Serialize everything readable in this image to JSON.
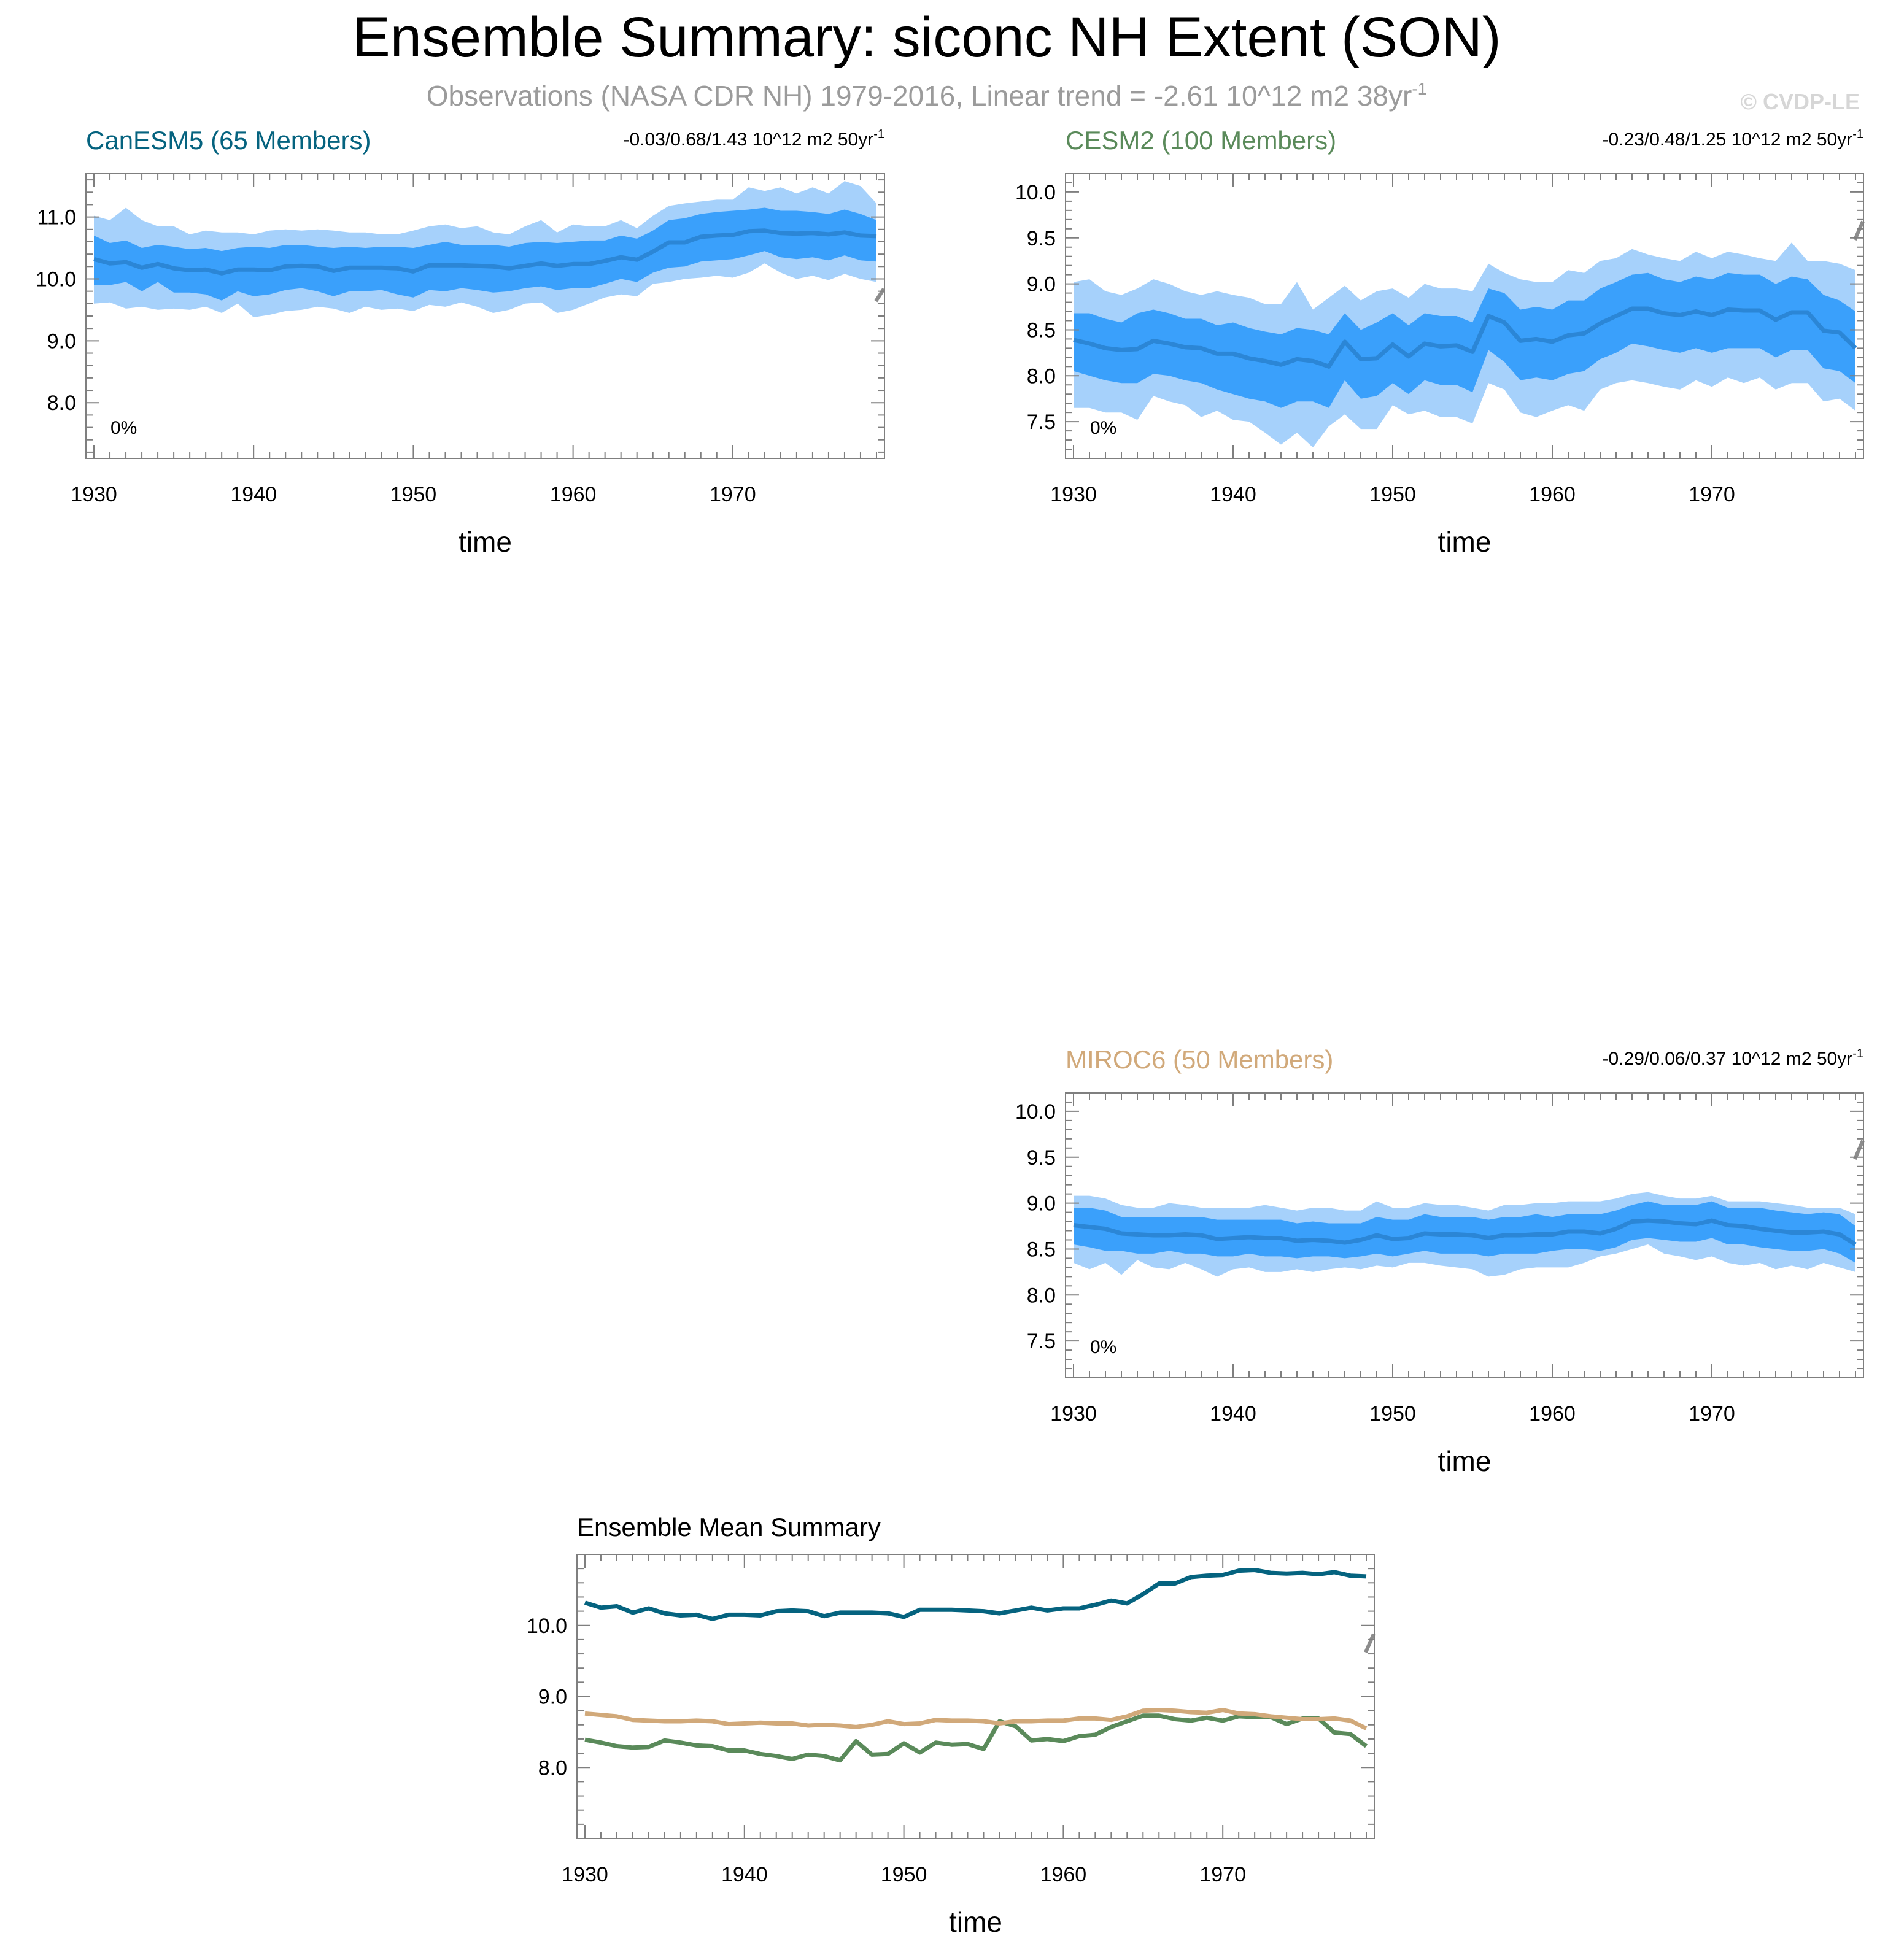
{
  "title": "Ensemble Summary: siconc NH Extent (SON)",
  "subtitle": {
    "main": "Observations (NASA CDR NH) 1979-2016, Linear trend = -2.61 10^12 m2 38yr",
    "sup": "-1"
  },
  "copyright": "© CVDP-LE",
  "colors": {
    "outer_band": "#a6d1fb",
    "inner_band": "#3aa0fb",
    "mean_line": "#2b86d6",
    "axis": "#7f7f7f",
    "obs_mark": "#8c8c8c",
    "canesm5": "#05637f",
    "cesm2": "#5a8a5a",
    "miroc6": "#d1a97a"
  },
  "chart_data": [
    {
      "id": "canesm5",
      "type": "area",
      "title": "CanESM5 (65 Members)",
      "title_color": "#05637f",
      "stats": "-0.03/0.68/1.43 10^12 m2 50yr",
      "stats_sup": "-1",
      "percent_label": "0%",
      "xlabel": "time",
      "xlim": [
        1929.5,
        1979.5
      ],
      "xticks": [
        1930,
        1940,
        1950,
        1960,
        1970
      ],
      "ylim": [
        7.1,
        11.7
      ],
      "yticks": [
        8.0,
        9.0,
        10.0,
        11.0
      ],
      "ytick_labels": [
        "8.0",
        "9.0",
        "10.0",
        "11.0"
      ],
      "obs_mark_y": [
        9.64,
        9.84
      ],
      "x_start": 1930,
      "x_end": 1979,
      "mean": [
        10.32,
        10.25,
        10.27,
        10.18,
        10.24,
        10.17,
        10.14,
        10.15,
        10.09,
        10.15,
        10.15,
        10.14,
        10.2,
        10.21,
        10.2,
        10.13,
        10.18,
        10.18,
        10.18,
        10.17,
        10.12,
        10.22,
        10.22,
        10.22,
        10.21,
        10.2,
        10.17,
        10.21,
        10.25,
        10.21,
        10.24,
        10.24,
        10.29,
        10.35,
        10.31,
        10.44,
        10.59,
        10.59,
        10.68,
        10.7,
        10.71,
        10.77,
        10.78,
        10.74,
        10.73,
        10.74,
        10.72,
        10.75,
        10.7,
        10.69
      ],
      "p10": [
        9.9,
        9.9,
        9.95,
        9.8,
        9.95,
        9.78,
        9.78,
        9.75,
        9.65,
        9.8,
        9.72,
        9.75,
        9.82,
        9.85,
        9.8,
        9.72,
        9.8,
        9.8,
        9.82,
        9.75,
        9.7,
        9.82,
        9.8,
        9.85,
        9.82,
        9.78,
        9.8,
        9.85,
        9.88,
        9.82,
        9.85,
        9.85,
        9.92,
        10.0,
        9.95,
        10.1,
        10.18,
        10.2,
        10.28,
        10.3,
        10.32,
        10.38,
        10.45,
        10.35,
        10.32,
        10.35,
        10.3,
        10.38,
        10.3,
        10.28
      ],
      "p90": [
        10.7,
        10.58,
        10.62,
        10.5,
        10.55,
        10.52,
        10.48,
        10.5,
        10.45,
        10.5,
        10.52,
        10.5,
        10.55,
        10.55,
        10.52,
        10.5,
        10.52,
        10.5,
        10.52,
        10.52,
        10.5,
        10.55,
        10.6,
        10.55,
        10.55,
        10.55,
        10.52,
        10.58,
        10.6,
        10.58,
        10.6,
        10.62,
        10.62,
        10.7,
        10.65,
        10.78,
        10.95,
        10.98,
        11.05,
        11.08,
        11.1,
        11.12,
        11.15,
        11.1,
        11.1,
        11.08,
        11.05,
        11.12,
        11.05,
        10.95
      ],
      "p2": [
        9.6,
        9.62,
        9.52,
        9.55,
        9.5,
        9.52,
        9.5,
        9.55,
        9.45,
        9.6,
        9.38,
        9.42,
        9.48,
        9.5,
        9.55,
        9.52,
        9.45,
        9.55,
        9.5,
        9.52,
        9.48,
        9.58,
        9.55,
        9.62,
        9.55,
        9.45,
        9.5,
        9.6,
        9.62,
        9.45,
        9.5,
        9.6,
        9.7,
        9.75,
        9.72,
        9.92,
        9.95,
        10.0,
        10.02,
        10.05,
        10.02,
        10.1,
        10.25,
        10.1,
        10.0,
        10.05,
        9.98,
        10.08,
        10.0,
        9.95
      ],
      "p98": [
        11.02,
        10.95,
        11.15,
        10.95,
        10.85,
        10.85,
        10.72,
        10.78,
        10.75,
        10.75,
        10.72,
        10.78,
        10.8,
        10.78,
        10.8,
        10.78,
        10.75,
        10.75,
        10.72,
        10.72,
        10.78,
        10.85,
        10.88,
        10.82,
        10.85,
        10.75,
        10.72,
        10.85,
        10.95,
        10.75,
        10.88,
        10.85,
        10.85,
        10.95,
        10.82,
        11.02,
        11.18,
        11.22,
        11.25,
        11.28,
        11.28,
        11.48,
        11.42,
        11.48,
        11.38,
        11.48,
        11.38,
        11.58,
        11.5,
        11.22
      ]
    },
    {
      "id": "cesm2",
      "type": "area",
      "title": "CESM2 (100 Members)",
      "title_color": "#5a8a5a",
      "stats": "-0.23/0.48/1.25 10^12 m2 50yr",
      "stats_sup": "-1",
      "percent_label": "0%",
      "xlabel": "time",
      "xlim": [
        1929.5,
        1979.5
      ],
      "xticks": [
        1930,
        1940,
        1950,
        1960,
        1970
      ],
      "ylim": [
        7.1,
        10.2
      ],
      "yticks": [
        7.5,
        8.0,
        8.5,
        9.0,
        9.5,
        10.0
      ],
      "ytick_labels": [
        "7.5",
        "8.0",
        "8.5",
        "9.0",
        "9.5",
        "10.0"
      ],
      "obs_mark_y": [
        9.48,
        9.68
      ],
      "x_start": 1930,
      "x_end": 1979,
      "mean": [
        8.39,
        8.35,
        8.3,
        8.28,
        8.29,
        8.38,
        8.35,
        8.31,
        8.3,
        8.24,
        8.24,
        8.19,
        8.16,
        8.12,
        8.18,
        8.16,
        8.1,
        8.37,
        8.18,
        8.19,
        8.34,
        8.21,
        8.35,
        8.32,
        8.33,
        8.26,
        8.65,
        8.58,
        8.38,
        8.4,
        8.37,
        8.44,
        8.46,
        8.57,
        8.65,
        8.73,
        8.73,
        8.68,
        8.66,
        8.7,
        8.66,
        8.72,
        8.71,
        8.71,
        8.61,
        8.69,
        8.69,
        8.49,
        8.47,
        8.3
      ],
      "p10": [
        8.05,
        8.0,
        7.95,
        7.92,
        7.92,
        8.02,
        8.0,
        7.95,
        7.92,
        7.85,
        7.8,
        7.75,
        7.72,
        7.65,
        7.72,
        7.72,
        7.65,
        7.95,
        7.75,
        7.78,
        7.92,
        7.8,
        7.95,
        7.9,
        7.9,
        7.82,
        8.28,
        8.15,
        7.95,
        7.98,
        7.95,
        8.02,
        8.05,
        8.18,
        8.25,
        8.35,
        8.32,
        8.28,
        8.25,
        8.3,
        8.25,
        8.3,
        8.3,
        8.3,
        8.2,
        8.28,
        8.28,
        8.08,
        8.05,
        7.92
      ],
      "p90": [
        8.68,
        8.68,
        8.62,
        8.58,
        8.68,
        8.72,
        8.68,
        8.62,
        8.62,
        8.55,
        8.58,
        8.52,
        8.48,
        8.45,
        8.52,
        8.5,
        8.45,
        8.68,
        8.5,
        8.58,
        8.68,
        8.55,
        8.68,
        8.65,
        8.65,
        8.58,
        8.95,
        8.9,
        8.72,
        8.75,
        8.72,
        8.82,
        8.82,
        8.95,
        9.02,
        9.1,
        9.12,
        9.05,
        9.02,
        9.08,
        9.05,
        9.12,
        9.1,
        9.1,
        9.0,
        9.08,
        9.05,
        8.88,
        8.82,
        8.7
      ],
      "p2": [
        7.65,
        7.65,
        7.6,
        7.6,
        7.52,
        7.78,
        7.72,
        7.68,
        7.55,
        7.62,
        7.52,
        7.5,
        7.38,
        7.25,
        7.38,
        7.22,
        7.45,
        7.58,
        7.42,
        7.42,
        7.68,
        7.58,
        7.62,
        7.55,
        7.55,
        7.48,
        7.92,
        7.85,
        7.6,
        7.55,
        7.62,
        7.68,
        7.62,
        7.85,
        7.92,
        7.95,
        7.92,
        7.88,
        7.85,
        7.95,
        7.88,
        7.98,
        7.92,
        7.98,
        7.85,
        7.92,
        7.92,
        7.72,
        7.75,
        7.62
      ],
      "p98": [
        9.02,
        9.05,
        8.92,
        8.88,
        8.95,
        9.05,
        9.0,
        8.92,
        8.88,
        8.92,
        8.88,
        8.85,
        8.78,
        8.78,
        9.02,
        8.72,
        8.85,
        8.98,
        8.82,
        8.92,
        8.95,
        8.85,
        9.0,
        8.95,
        8.95,
        8.92,
        9.22,
        9.12,
        9.05,
        9.02,
        9.02,
        9.15,
        9.12,
        9.25,
        9.28,
        9.38,
        9.32,
        9.28,
        9.25,
        9.35,
        9.28,
        9.35,
        9.32,
        9.28,
        9.25,
        9.45,
        9.25,
        9.25,
        9.22,
        9.15
      ]
    },
    {
      "id": "miroc6",
      "type": "area",
      "title": "MIROC6 (50 Members)",
      "title_color": "#d1a97a",
      "stats": "-0.29/0.06/0.37 10^12 m2 50yr",
      "stats_sup": "-1",
      "percent_label": "0%",
      "xlabel": "time",
      "xlim": [
        1929.5,
        1979.5
      ],
      "xticks": [
        1930,
        1940,
        1950,
        1960,
        1970
      ],
      "ylim": [
        7.1,
        10.2
      ],
      "yticks": [
        7.5,
        8.0,
        8.5,
        9.0,
        9.5,
        10.0
      ],
      "ytick_labels": [
        "7.5",
        "8.0",
        "8.5",
        "9.0",
        "9.5",
        "10.0"
      ],
      "obs_mark_y": [
        9.48,
        9.68
      ],
      "x_start": 1930,
      "x_end": 1979,
      "mean": [
        8.76,
        8.74,
        8.72,
        8.67,
        8.66,
        8.65,
        8.65,
        8.66,
        8.65,
        8.61,
        8.62,
        8.63,
        8.62,
        8.62,
        8.59,
        8.6,
        8.59,
        8.57,
        8.6,
        8.65,
        8.61,
        8.62,
        8.67,
        8.66,
        8.66,
        8.65,
        8.62,
        8.65,
        8.65,
        8.66,
        8.66,
        8.69,
        8.69,
        8.67,
        8.72,
        8.8,
        8.81,
        8.8,
        8.78,
        8.77,
        8.81,
        8.76,
        8.75,
        8.72,
        8.7,
        8.68,
        8.68,
        8.69,
        8.66,
        8.55
      ],
      "p10": [
        8.55,
        8.52,
        8.48,
        8.48,
        8.45,
        8.45,
        8.48,
        8.45,
        8.45,
        8.42,
        8.42,
        8.45,
        8.42,
        8.42,
        8.4,
        8.42,
        8.42,
        8.4,
        8.42,
        8.45,
        8.42,
        8.45,
        8.48,
        8.45,
        8.45,
        8.45,
        8.42,
        8.45,
        8.45,
        8.45,
        8.48,
        8.5,
        8.5,
        8.48,
        8.52,
        8.6,
        8.62,
        8.6,
        8.58,
        8.58,
        8.62,
        8.55,
        8.55,
        8.52,
        8.5,
        8.48,
        8.48,
        8.5,
        8.45,
        8.35
      ],
      "p90": [
        8.95,
        8.95,
        8.92,
        8.85,
        8.85,
        8.85,
        8.85,
        8.85,
        8.85,
        8.82,
        8.82,
        8.82,
        8.82,
        8.82,
        8.78,
        8.8,
        8.78,
        8.78,
        8.78,
        8.85,
        8.82,
        8.82,
        8.88,
        8.85,
        8.85,
        8.85,
        8.82,
        8.85,
        8.85,
        8.88,
        8.85,
        8.88,
        8.88,
        8.88,
        8.92,
        8.98,
        9.02,
        8.98,
        8.98,
        8.98,
        9.02,
        8.95,
        8.95,
        8.95,
        8.92,
        8.9,
        8.88,
        8.9,
        8.88,
        8.75
      ],
      "p2": [
        8.35,
        8.28,
        8.35,
        8.22,
        8.38,
        8.3,
        8.28,
        8.35,
        8.28,
        8.2,
        8.28,
        8.3,
        8.25,
        8.25,
        8.28,
        8.25,
        8.28,
        8.3,
        8.28,
        8.32,
        8.3,
        8.35,
        8.35,
        8.32,
        8.3,
        8.28,
        8.2,
        8.22,
        8.28,
        8.3,
        8.3,
        8.3,
        8.35,
        8.42,
        8.45,
        8.5,
        8.55,
        8.45,
        8.42,
        8.38,
        8.42,
        8.35,
        8.32,
        8.35,
        8.28,
        8.32,
        8.28,
        8.35,
        8.3,
        8.25
      ],
      "p98": [
        9.08,
        9.08,
        9.05,
        8.98,
        8.95,
        8.95,
        9.0,
        8.98,
        8.95,
        8.95,
        8.95,
        8.95,
        8.98,
        8.95,
        8.92,
        8.95,
        8.95,
        8.92,
        8.92,
        9.02,
        8.95,
        8.95,
        9.0,
        8.98,
        8.98,
        8.95,
        8.92,
        8.98,
        8.98,
        9.0,
        9.0,
        9.02,
        9.02,
        9.02,
        9.05,
        9.1,
        9.12,
        9.08,
        9.05,
        9.05,
        9.08,
        9.02,
        9.02,
        9.02,
        9.0,
        8.98,
        8.95,
        8.95,
        8.95,
        8.88
      ]
    },
    {
      "id": "summary",
      "type": "line",
      "title": "Ensemble Mean Summary",
      "xlabel": "time",
      "xlim": [
        1929.5,
        1979.5
      ],
      "xticks": [
        1930,
        1940,
        1950,
        1960,
        1970
      ],
      "ylim": [
        7.0,
        11.0
      ],
      "yticks": [
        8.0,
        9.0,
        10.0
      ],
      "ytick_labels": [
        "8.0",
        "9.0",
        "10.0"
      ],
      "obs_mark_y": [
        9.62,
        9.88
      ],
      "x_start": 1930,
      "x_end": 1979,
      "series_ref": [
        "canesm5",
        "cesm2",
        "miroc6"
      ]
    }
  ]
}
